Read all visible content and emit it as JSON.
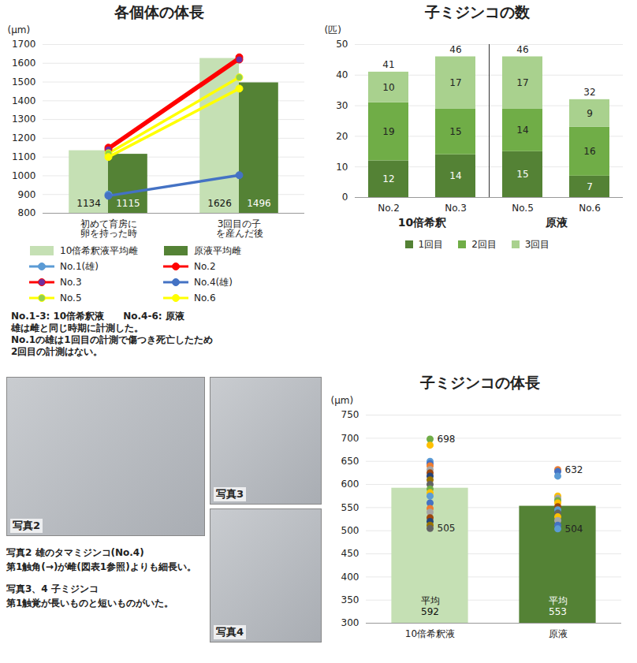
{
  "chart_data": [
    {
      "type": "bar",
      "title": "各個体の体長",
      "y_label": "(μm)",
      "categories": [
        "初めて育房に卵を持った時",
        "3回目の子を産んだ後"
      ],
      "ylim": [
        800,
        1700
      ],
      "yticks": [
        800,
        900,
        1000,
        1100,
        1200,
        1300,
        1400,
        1500,
        1600,
        1700
      ],
      "grid": true,
      "data_labels": true,
      "legend": "bottom",
      "series": [
        {
          "name": "10倍希釈液平均雌",
          "type": "bar",
          "color": "#c5e0b4",
          "values": [
            1134,
            1626
          ]
        },
        {
          "name": "原液平均雌",
          "type": "bar",
          "color": "#548235",
          "values": [
            1115,
            1496
          ]
        },
        {
          "name": "No.1(雄)",
          "type": "line",
          "color": "#5b9bd5",
          "marker": "circle",
          "values": [
            900,
            null
          ]
        },
        {
          "name": "No.2",
          "type": "line",
          "color": "#ff0000",
          "marker": "circle",
          "values": [
            1150,
            1632
          ]
        },
        {
          "name": "No.3",
          "type": "line",
          "color": "#ff0000",
          "colors": [
            "#7030a0",
            "#7030a0"
          ],
          "marker": "circle",
          "values": [
            1140,
            1620
          ]
        },
        {
          "name": "No.4(雄)",
          "type": "line",
          "color": "#4472c4",
          "marker": "circle",
          "values": [
            893,
            1003
          ]
        },
        {
          "name": "No.5",
          "type": "line",
          "color": "#ffff00",
          "colors": [
            "#92d050",
            "#92d050"
          ],
          "marker": "circle",
          "values": [
            1120,
            1525
          ]
        },
        {
          "name": "No.6",
          "type": "line",
          "color": "#ffff00",
          "marker": "circle",
          "values": [
            1100,
            1465
          ]
        }
      ],
      "annotations": [
        "No.1-3: 10倍希釈液　　No.4-6: 原液",
        "雄は雌と同じ時期に計測した。",
        "No.1の雄は1回目の計測で傷つき死亡したため",
        "2回目の計測はない。"
      ]
    },
    {
      "type": "bar",
      "stacked": true,
      "title": "子ミジンコの数",
      "y_label": "(匹)",
      "categories": [
        "No.2",
        "No.3",
        "No.5",
        "No.6"
      ],
      "groups": [
        {
          "name": "10倍希釈",
          "categories": [
            "No.2",
            "No.3"
          ]
        },
        {
          "name": "原液",
          "categories": [
            "No.5",
            "No.6"
          ]
        }
      ],
      "ylim": [
        0,
        50
      ],
      "yticks": [
        0,
        10,
        20,
        30,
        40,
        50
      ],
      "grid": true,
      "data_labels": true,
      "legend": "bottom",
      "series": [
        {
          "name": "1回目",
          "color": "#548235",
          "values": [
            12,
            14,
            15,
            7
          ]
        },
        {
          "name": "2回目",
          "color": "#70ad47",
          "values": [
            19,
            15,
            14,
            16
          ]
        },
        {
          "name": "3回目",
          "color": "#a9d18e",
          "values": [
            10,
            17,
            17,
            9
          ]
        }
      ],
      "totals": [
        41,
        46,
        46,
        32
      ]
    },
    {
      "type": "bar",
      "title": "子ミジンコの体長",
      "y_label": "(μm)",
      "categories": [
        "10倍希釈液",
        "原液"
      ],
      "colors": [
        "#c5e0b4",
        "#548235"
      ],
      "values": [
        592,
        553
      ],
      "value_labels": [
        "平均\n592",
        "平均\n553"
      ],
      "data_labels": true,
      "ylim": [
        300,
        750
      ],
      "yticks": [
        300,
        350,
        400,
        450,
        500,
        550,
        600,
        650,
        700,
        750
      ],
      "grid": true,
      "points": [
        {
          "category": "10倍希釈液",
          "type": "scatter",
          "marker": "circle",
          "values": [
            698,
            685,
            650,
            645,
            640,
            632,
            625,
            618,
            610,
            600,
            590,
            582,
            575,
            560,
            548,
            540,
            528,
            520,
            512,
            505
          ],
          "colors": [
            "#70ad47",
            "#ffc000",
            "#5b9bd5",
            "#4472c4",
            "#ed7d31",
            "#a5a5a5",
            "#9e480e",
            "#264478",
            "#997300",
            "#636363",
            "#70ad47",
            "#ffc000",
            "#5b9bd5",
            "#4472c4",
            "#ed7d31",
            "#a5a5a5",
            "#9e480e",
            "#264478",
            "#997300",
            "#636363"
          ],
          "labeled": [
            698,
            505
          ]
        },
        {
          "category": "原液",
          "type": "scatter",
          "marker": "circle",
          "values": [
            632,
            628,
            618,
            575,
            570,
            565,
            560,
            552,
            545,
            538,
            530,
            522,
            512,
            504
          ],
          "colors": [
            "#ed7d31",
            "#4472c4",
            "#5b9bd5",
            "#ffc000",
            "#a5a5a5",
            "#70ad47",
            "#ffc000",
            "#9e480e",
            "#5b9bd5",
            "#636363",
            "#ffc000",
            "#a5a5a5",
            "#4472c4",
            "#5b9bd5"
          ],
          "labeled": [
            632,
            504
          ]
        }
      ]
    }
  ],
  "photos": [
    {
      "label": "写真2"
    },
    {
      "label": "写真3"
    },
    {
      "label": "写真4"
    }
  ],
  "captions": [
    [
      "写真2 雄のタマミジンコ(No.4)",
      "第1触角(→)が雌(図表1参照)よりも細長い。"
    ],
    [
      "写真3、4 子ミジンコ",
      "第1触覚が長いものと短いものがいた。"
    ]
  ]
}
